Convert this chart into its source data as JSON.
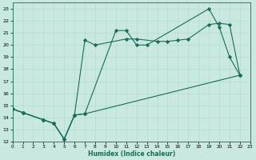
{
  "xlabel": "Humidex (Indice chaleur)",
  "bg_color": "#c8e8e0",
  "line_color": "#1a6b5a",
  "grid_color": "#b0d8d0",
  "xlim": [
    0,
    23
  ],
  "ylim": [
    12,
    23.5
  ],
  "xticks": [
    0,
    1,
    2,
    3,
    4,
    5,
    6,
    7,
    8,
    9,
    10,
    11,
    12,
    13,
    14,
    15,
    16,
    17,
    18,
    19,
    20,
    21,
    22,
    23
  ],
  "yticks": [
    12,
    13,
    14,
    15,
    16,
    17,
    18,
    19,
    20,
    21,
    22,
    23
  ],
  "line1_x": [
    0,
    1,
    3,
    4,
    5,
    6,
    7,
    8,
    11,
    12,
    14,
    15,
    16,
    17,
    19,
    20,
    21,
    22
  ],
  "line1_y": [
    14.7,
    14.4,
    13.8,
    13.5,
    12.2,
    14.2,
    20.4,
    20.0,
    20.5,
    20.5,
    20.3,
    20.3,
    20.4,
    20.5,
    21.7,
    21.8,
    21.7,
    17.5
  ],
  "line2_x": [
    0,
    1,
    3,
    4,
    5,
    6,
    7,
    10,
    11,
    12,
    13,
    19,
    20,
    21,
    22
  ],
  "line2_y": [
    14.7,
    14.4,
    13.8,
    13.5,
    12.2,
    14.2,
    14.3,
    21.2,
    21.2,
    20.0,
    20.0,
    23.0,
    21.5,
    19.0,
    17.5
  ],
  "line3_x": [
    0,
    1,
    3,
    4,
    5,
    6,
    7,
    22
  ],
  "line3_y": [
    14.7,
    14.4,
    13.8,
    13.5,
    12.2,
    14.2,
    14.3,
    17.5
  ],
  "figsize": [
    3.2,
    2.0
  ],
  "dpi": 100
}
